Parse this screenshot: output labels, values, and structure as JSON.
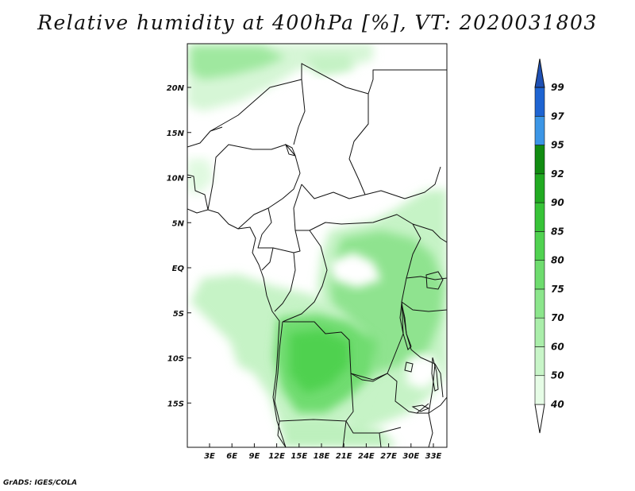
{
  "title": "Relative humidity at 400hPa [%], VT: 2020031803",
  "footer": "GrADS: IGES/COLA",
  "map": {
    "lon_range": [
      0,
      35
    ],
    "lat_range": [
      -20,
      25
    ],
    "lat_ticks": [
      "20N",
      "15N",
      "10N",
      "5N",
      "EQ",
      "5S",
      "10S",
      "15S"
    ],
    "lon_ticks": [
      "3E",
      "6E",
      "9E",
      "12E",
      "15E",
      "18E",
      "21E",
      "24E",
      "27E",
      "30E",
      "33E"
    ]
  },
  "colorbar": {
    "levels": [
      "40",
      "50",
      "60",
      "70",
      "75",
      "80",
      "85",
      "90",
      "92",
      "95",
      "97",
      "99"
    ],
    "colors": [
      "#ffffff",
      "#e6fce6",
      "#c8f5c8",
      "#aaeeaa",
      "#8ce68c",
      "#6edc6e",
      "#50d250",
      "#37c337",
      "#21aa21",
      "#118c11",
      "#3c96e6",
      "#1e64d2",
      "#1e50b4"
    ]
  }
}
